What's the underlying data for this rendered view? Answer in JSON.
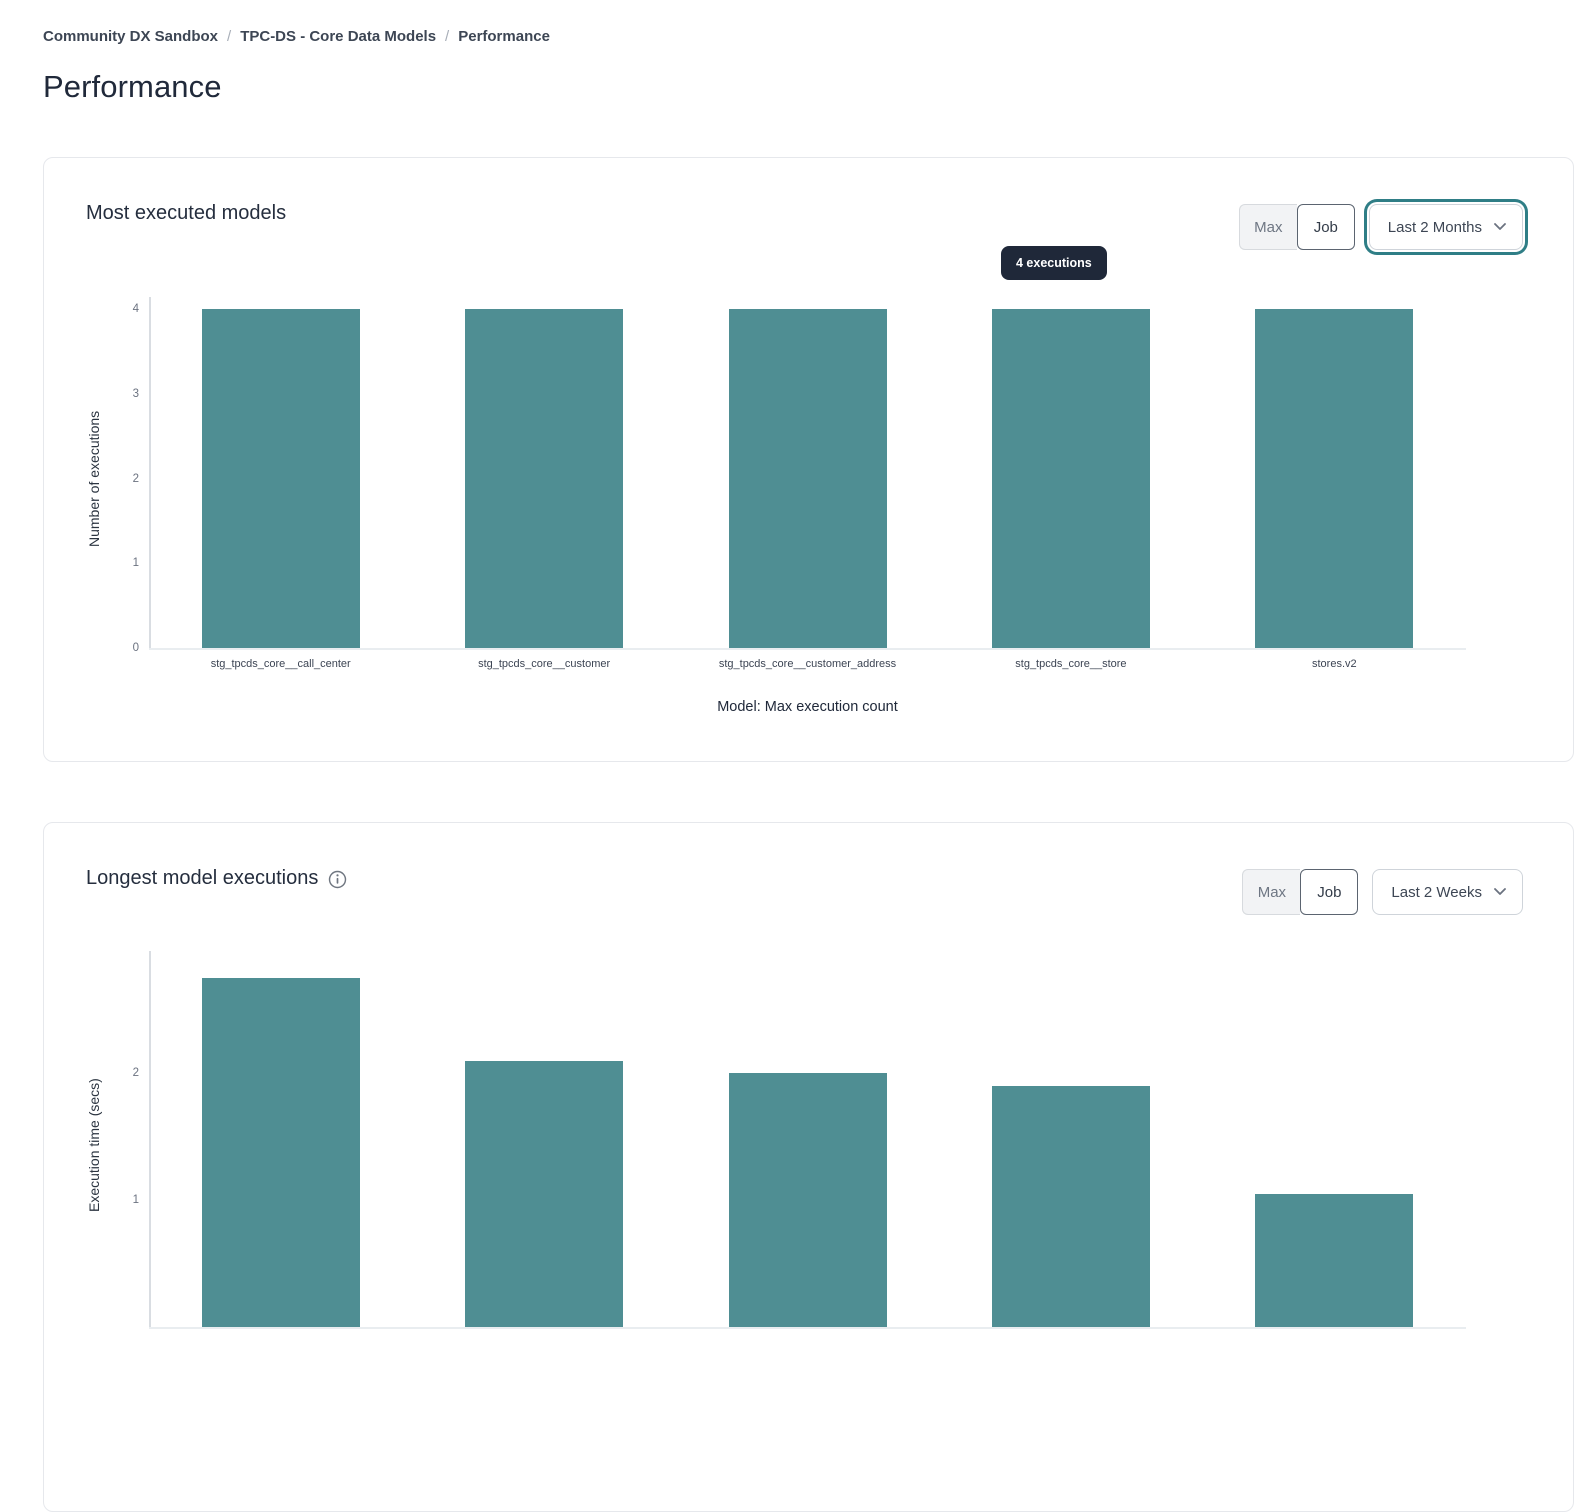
{
  "breadcrumb": {
    "separator": "/",
    "items": [
      "Community DX Sandbox",
      "TPC-DS - Core Data Models",
      "Performance"
    ]
  },
  "page": {
    "title": "Performance"
  },
  "cards": [
    {
      "title": "Most executed models",
      "toggle": {
        "options": [
          "Max",
          "Job"
        ],
        "selected": "Job"
      },
      "range_dropdown": {
        "value": "Last 2 Months",
        "focused": true
      },
      "tooltip": "4 executions"
    },
    {
      "title": "Longest model executions",
      "has_info_icon": true,
      "toggle": {
        "options": [
          "Max",
          "Job"
        ],
        "selected": "Job"
      },
      "range_dropdown": {
        "value": "Last 2 Weeks",
        "focused": false
      }
    }
  ],
  "colors": {
    "bar": "#4f8e93",
    "tooltip_bg": "#1f2839",
    "focus_ring": "#2f7e86",
    "card_border": "#e6e8ec"
  },
  "chart_data": [
    {
      "type": "bar",
      "title": "Most executed models",
      "categories": [
        "stg_tpcds_core__call_center",
        "stg_tpcds_core__customer",
        "stg_tpcds_core__customer_address",
        "stg_tpcds_core__store",
        "stores.v2"
      ],
      "values": [
        4,
        4,
        4,
        4,
        4
      ],
      "xlabel": "Model: Max execution count",
      "ylabel": "Number of executions",
      "ylim": [
        0,
        4
      ],
      "yticks": [
        0,
        1,
        2,
        3,
        4
      ],
      "legend": "none",
      "grid": false,
      "bar_color": "#4f8e93",
      "tooltip": {
        "text": "4 executions",
        "target_index": 3
      }
    },
    {
      "type": "bar",
      "title": "Longest model executions",
      "categories": [],
      "values": [
        2.75,
        2.1,
        2.0,
        1.9,
        1.05
      ],
      "xlabel": "",
      "ylabel": "Execution time (secs)",
      "ylim": [
        0,
        2.87
      ],
      "yticks": [
        1,
        2
      ],
      "legend": "none",
      "grid": false,
      "bar_color": "#4f8e93",
      "note": "chart cropped at bottom of screenshot; x-axis labels not visible"
    }
  ]
}
